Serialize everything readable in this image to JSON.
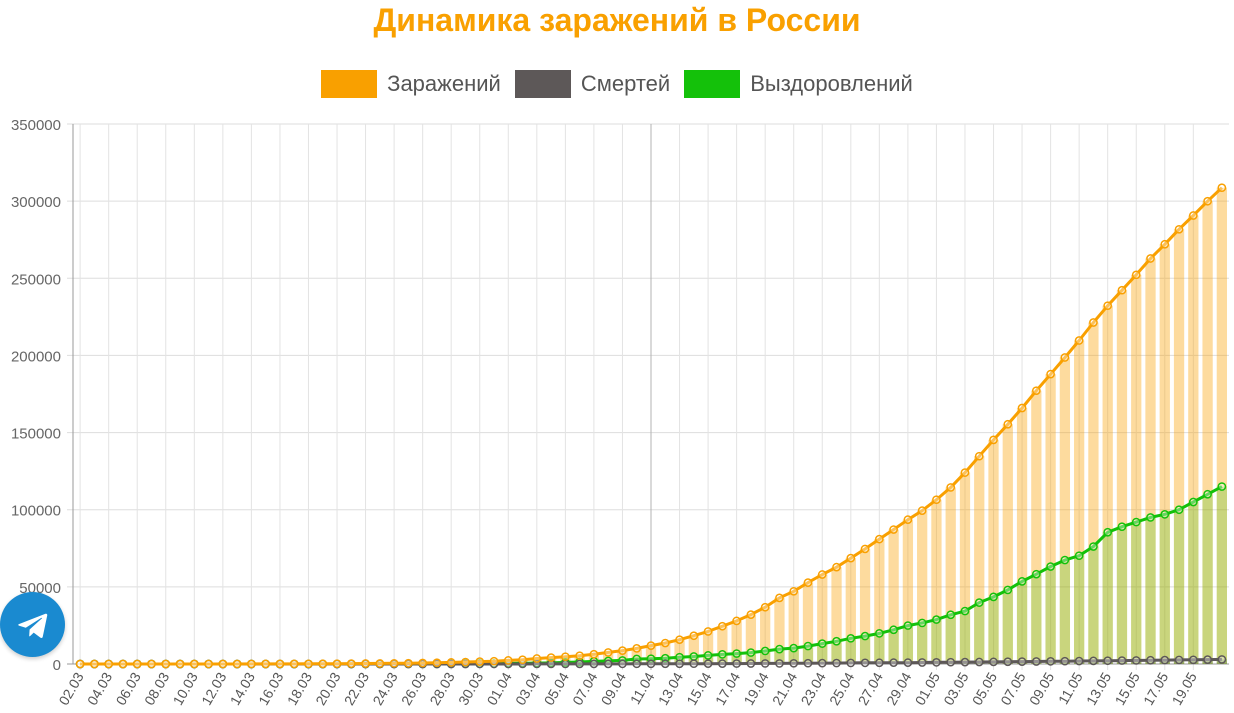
{
  "chart_data": {
    "type": "bar",
    "title": "Динамика заражений в России",
    "xlabel": "",
    "ylabel": "",
    "ylim": [
      0,
      350000
    ],
    "yticks": [
      "0",
      "50000",
      "100000",
      "150000",
      "200000",
      "250000",
      "300000",
      "350000"
    ],
    "tick_labels": [
      "02.03",
      "04.03",
      "06.03",
      "08.03",
      "10.03",
      "12.03",
      "14.03",
      "16.03",
      "18.03",
      "20.03",
      "22.03",
      "24.03",
      "26.03",
      "28.03",
      "30.03",
      "01.04",
      "03.04",
      "05.04",
      "07.04",
      "09.04",
      "11.04",
      "13.04",
      "15.04",
      "17.04",
      "19.04",
      "21.04",
      "23.04",
      "25.04",
      "27.04",
      "29.04",
      "01.05",
      "03.05",
      "05.05",
      "07.05",
      "09.05",
      "11.05",
      "13.05",
      "15.05",
      "17.05",
      "19.05"
    ],
    "legend_position": "top-center",
    "grid": true,
    "series": [
      {
        "name": "Заражений",
        "color": "#f9a000",
        "values": [
          3,
          3,
          3,
          3,
          3,
          4,
          4,
          10,
          13,
          17,
          20,
          28,
          45,
          59,
          63,
          90,
          114,
          147,
          199,
          253,
          306,
          367,
          438,
          495,
          658,
          840,
          1036,
          1264,
          1534,
          1836,
          2337,
          2777,
          3548,
          4149,
          4731,
          5389,
          6343,
          7497,
          8672,
          10131,
          11917,
          13584,
          15770,
          18328,
          21102,
          24490,
          27938,
          32008,
          36793,
          42853,
          47121,
          52763,
          57999,
          62773,
          68622,
          74588,
          80949,
          87147,
          93558,
          99399,
          106498,
          114431,
          124054,
          134687,
          145268,
          155370,
          165929,
          177160,
          187859,
          198676,
          209688,
          221344,
          232243,
          242271,
          252245,
          262843,
          272043,
          281752,
          290678,
          299941,
          308705
        ]
      },
      {
        "name": "Смертей",
        "color": "#5d5858",
        "values": [
          0,
          0,
          0,
          0,
          0,
          0,
          0,
          0,
          0,
          0,
          0,
          0,
          0,
          0,
          0,
          0,
          0,
          0,
          1,
          1,
          1,
          1,
          1,
          2,
          3,
          4,
          4,
          8,
          9,
          17,
          24,
          30,
          34,
          43,
          47,
          58,
          63,
          76,
          94,
          106,
          130,
          148,
          170,
          198,
          215,
          232,
          273,
          313,
          361,
          361,
          456,
          513,
          555,
          615,
          681,
          747,
          794,
          867,
          867,
          972,
          1073,
          1169,
          1222,
          1280,
          1356,
          1451,
          1537,
          1625,
          1723,
          1827,
          1915,
          2009,
          2116,
          2212,
          2305,
          2418,
          2537,
          2631,
          2722,
          2837,
          2972
        ]
      },
      {
        "name": "Выздоровлений",
        "color": "#14c10a",
        "values": [
          0,
          0,
          0,
          0,
          0,
          0,
          0,
          2,
          2,
          2,
          2,
          2,
          3,
          3,
          3,
          5,
          5,
          8,
          9,
          16,
          22,
          29,
          43,
          49,
          66,
          79,
          121,
          190,
          242,
          286,
          388,
          494,
          580,
          698,
          1045,
          1291,
          1694,
          1986,
          2304,
          3273,
          3446,
          3731,
          4420,
          4891,
          5568,
          6250,
          6767,
          7402,
          8456,
          9634,
          10286,
          11619,
          13220,
          14740,
          16639,
          18095,
          19865,
          22175,
          24898,
          26608,
          28791,
          31916,
          34306,
          39801,
          43512,
          48003,
          53530,
          58226,
          63166,
          67373,
          70209,
          76130,
          85392,
          89000,
          92000,
          95000,
          97000,
          100000,
          105000,
          110000,
          115000
        ]
      }
    ]
  },
  "ui": {
    "fab_icon": "telegram-icon",
    "fab_color": "#1a8ad0"
  }
}
